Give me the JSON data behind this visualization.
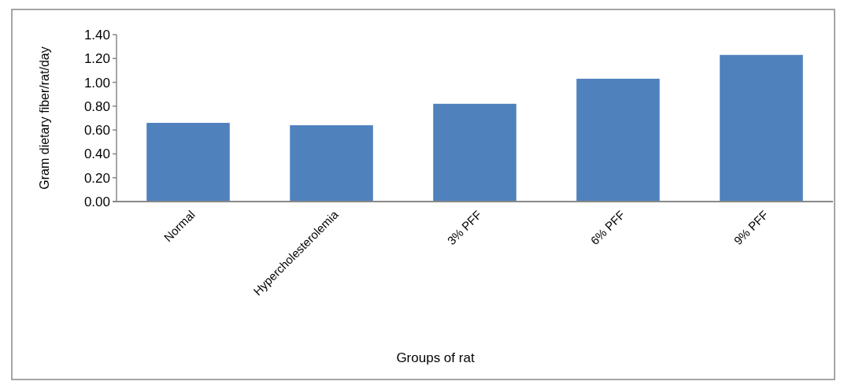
{
  "chart_data": {
    "type": "bar",
    "xlabel": "Groups of rat",
    "ylabel": "Gram dietary fiber/rat/day",
    "categories": [
      "Normal",
      "Hypercholesterolemia",
      "3% PFF",
      "6% PFF",
      "9% PFF"
    ],
    "values": [
      0.66,
      0.64,
      0.82,
      1.03,
      1.23
    ],
    "color": "#4f81bd",
    "ylim": [
      0,
      1.4
    ],
    "yticks": [
      {
        "value": 0,
        "label": "0.00"
      },
      {
        "value": 0.2,
        "label": "0.20"
      },
      {
        "value": 0.4,
        "label": "0.40"
      },
      {
        "value": 0.6,
        "label": "0.60"
      },
      {
        "value": 0.8,
        "label": "0.80"
      },
      {
        "value": 1,
        "label": "1.00"
      },
      {
        "value": 1.2,
        "label": "1.20"
      },
      {
        "value": 1.4,
        "label": "1.40"
      }
    ],
    "grid": false
  }
}
